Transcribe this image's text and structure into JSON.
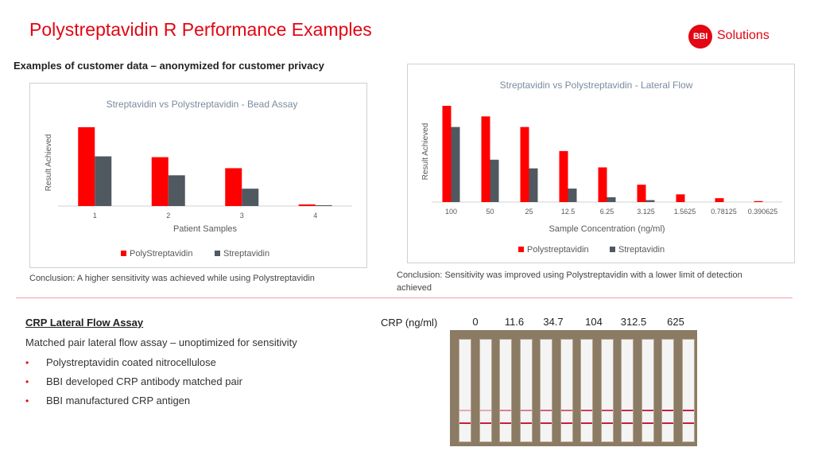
{
  "title": "Polystreptavidin R Performance Examples",
  "logo": {
    "mark": "BBI",
    "word": "Solutions"
  },
  "subtitle": "Examples of customer data  – anonymized for customer privacy",
  "colors": {
    "accent": "#e30613",
    "poly": "#ff0000",
    "strep": "#505860",
    "line": "#c4203b"
  },
  "chart_data": [
    {
      "type": "bar",
      "title": "Streptavidin vs  Polystreptavidin  - Bead Assay",
      "xlabel": "Patient Samples",
      "ylabel": "Result Achieved",
      "categories": [
        "1",
        "2",
        "3",
        "4"
      ],
      "series": [
        {
          "name": "PolyStreptavidin",
          "values": [
            100,
            62,
            48,
            2
          ]
        },
        {
          "name": "Streptavidin",
          "values": [
            63,
            39,
            22,
            1
          ]
        }
      ],
      "ylim": [
        0,
        110
      ],
      "legend": "bottom"
    },
    {
      "type": "bar",
      "title": "Streptavidin vs  Polystreptavidin  - Lateral Flow",
      "xlabel": "Sample Concentration (ng/ml)",
      "ylabel": "Result Achieved",
      "categories": [
        "100",
        "50",
        "25",
        "12.5",
        "6.25",
        "3.125",
        "1.5625",
        "0.78125",
        "0.390625"
      ],
      "series": [
        {
          "name": "Polystreptavidin",
          "values": [
            100,
            89,
            78,
            53,
            36,
            18,
            8,
            4,
            1
          ]
        },
        {
          "name": "Streptavidin",
          "values": [
            78,
            44,
            35,
            14,
            5,
            2,
            0,
            0,
            0
          ]
        }
      ],
      "ylim": [
        0,
        105
      ],
      "legend": "bottom"
    }
  ],
  "conclusion1": "Conclusion: A higher sensitivity was achieved while using   Polystreptavidin",
  "conclusion2": "Conclusion: Sensitivity was improved using   Polystreptavidin with a lower limit of detection achieved",
  "crp": {
    "title": "CRP Lateral Flow Assay",
    "description": "Matched pair lateral flow assay  – unoptimized  for sensitivity",
    "bullets": [
      "Polystreptavidin coated nitrocellulose",
      "BBI developed CRP antibody matched pair",
      "BBI manufactured CRP antigen"
    ],
    "concentration_label": "CRP (ng/ml)",
    "concentrations": [
      "0",
      "11.6",
      "34.7",
      "104",
      "312.5",
      "625"
    ]
  }
}
